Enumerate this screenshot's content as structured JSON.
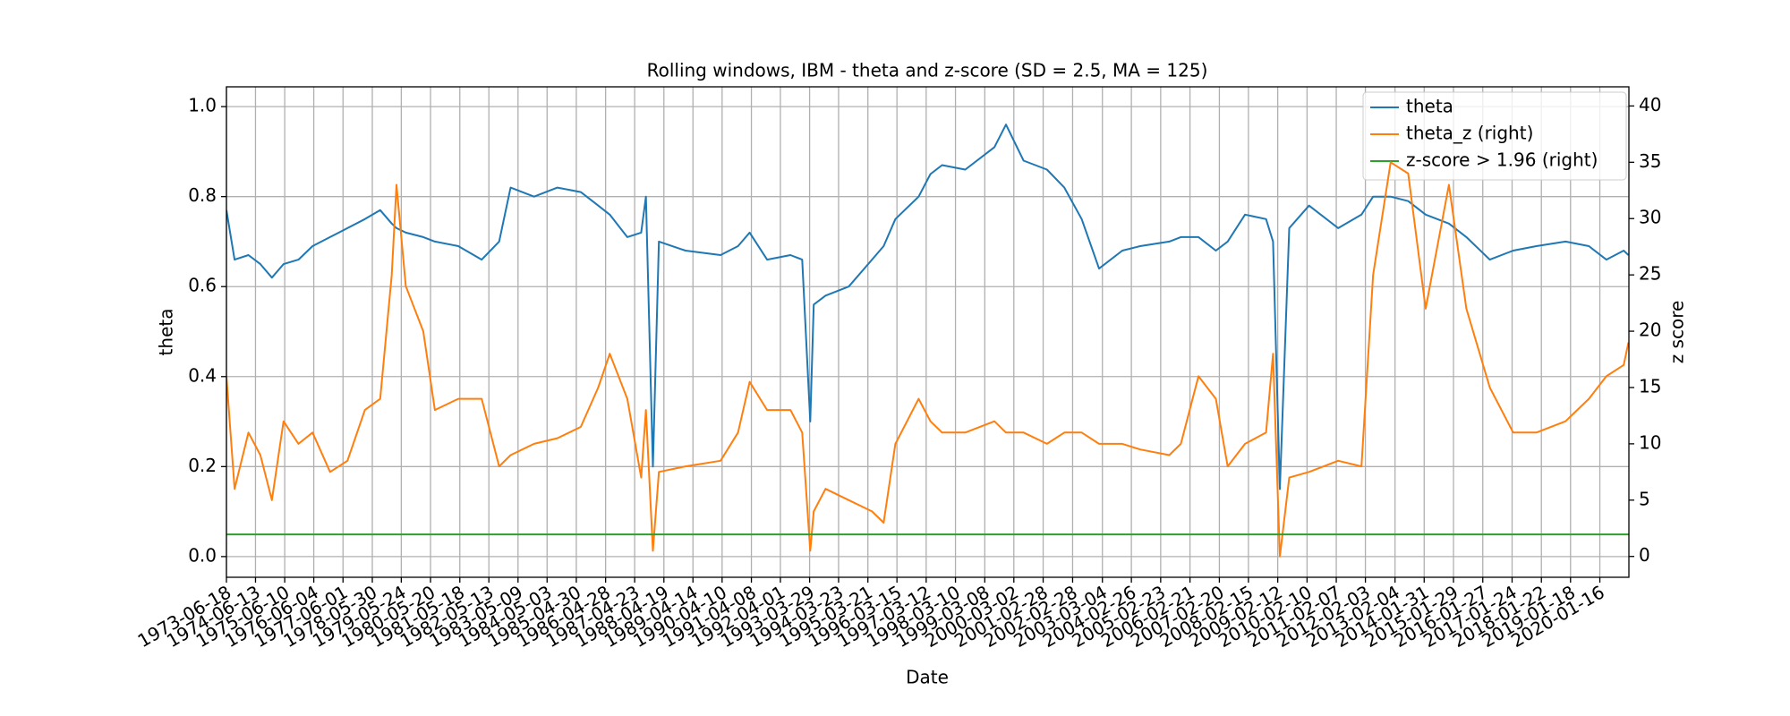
{
  "chart_data": {
    "type": "line",
    "title": "Rolling windows, IBM - theta and z-score (SD = 2.5, MA = 125)",
    "xlabel": "Date",
    "ylabel": "theta",
    "y2label": "z score",
    "legend": "upper right",
    "grid": true,
    "xlim": [
      "1973-06-18",
      "2021-01-10"
    ],
    "ylim": [
      -0.046,
      1.044
    ],
    "y2lim": [
      -1.85,
      41.7
    ],
    "yticks": [
      {
        "value": 0,
        "label": "0.0"
      },
      0.2,
      0.4,
      0.6,
      0.8,
      {
        "value": 1,
        "label": "1.0"
      }
    ],
    "y2ticks": [
      0,
      5,
      10,
      15,
      20,
      25,
      30,
      35,
      40
    ],
    "xticks": [
      "1973-06-18",
      "1974-06-13",
      "1975-06-10",
      "1976-06-04",
      "1977-06-01",
      "1978-05-30",
      "1979-05-24",
      "1980-05-20",
      "1981-05-18",
      "1982-05-13",
      "1983-05-09",
      "1984-05-03",
      "1985-04-30",
      "1986-04-28",
      "1987-04-23",
      "1988-04-19",
      "1989-04-14",
      "1990-04-10",
      "1991-04-08",
      "1992-04-01",
      "1993-03-29",
      "1994-03-23",
      "1995-03-21",
      "1996-03-15",
      "1997-03-12",
      "1998-03-10",
      "1999-03-08",
      "2000-03-02",
      "2001-02-28",
      "2002-02-28",
      "2003-03-04",
      "2004-02-26",
      "2005-02-23",
      "2006-02-21",
      "2007-02-20",
      "2008-02-15",
      "2009-02-12",
      "2010-02-10",
      "2011-02-07",
      "2012-02-03",
      "2013-02-04",
      "2014-01-31",
      "2015-01-29",
      "2016-01-27",
      "2017-01-24",
      "2018-01-22",
      "2019-01-18",
      "2020-01-16"
    ],
    "x": [
      "1973-06-18",
      "1973-09-27",
      "1974-03-18",
      "1974-08-12",
      "1975-01-02",
      "1975-05-26",
      "1975-11-28",
      "1976-05-19",
      "1976-12-23",
      "1977-07-26",
      "1978-02-27",
      "1978-09-05",
      "1979-01-26",
      "1979-03-26",
      "1979-07-19",
      "1980-02-20",
      "1980-07-13",
      "1981-04-30",
      "1982-02-13",
      "1982-09-17",
      "1983-02-06",
      "1983-11-23",
      "1984-09-08",
      "1985-06-24",
      "1986-01-26",
      "1986-06-18",
      "1987-01-22",
      "1987-07-13",
      "1987-09-09",
      "1987-12-05",
      "1988-02-17",
      "1989-01-11",
      "1990-03-22",
      "1990-10-24",
      "1991-03-17",
      "1991-10-19",
      "1992-08-04",
      "1992-12-27",
      "1993-04-06",
      "1993-05-19",
      "1993-10-12",
      "1994-07-27",
      "1995-05-11",
      "1995-10-02",
      "1996-02-24",
      "1996-12-09",
      "1997-05-04",
      "1997-09-25",
      "1998-07-09",
      "1999-07-06",
      "1999-11-26",
      "2000-07-01",
      "2001-04-16",
      "2001-11-17",
      "2002-06-21",
      "2003-01-22",
      "2003-11-06",
      "2004-06-13",
      "2005-06-10",
      "2005-10-31",
      "2006-06-06",
      "2007-01-08",
      "2007-06-03",
      "2008-01-04",
      "2008-09-20",
      "2008-12-16",
      "2009-03-10",
      "2009-07-05",
      "2010-03-07",
      "2011-03-03",
      "2011-12-16",
      "2012-05-08",
      "2012-12-12",
      "2013-07-17",
      "2014-02-18",
      "2014-12-03",
      "2015-07-08",
      "2016-04-23",
      "2017-02-06",
      "2017-11-21",
      "2018-11-17",
      "2019-09-02",
      "2020-04-06",
      "2020-11-07",
      "2021-01-05"
    ],
    "series": [
      {
        "name": "theta",
        "color": "#1f77b4",
        "values": [
          0.77,
          0.66,
          0.67,
          0.65,
          0.62,
          0.65,
          0.66,
          0.69,
          0.71,
          0.73,
          0.75,
          0.77,
          0.74,
          0.73,
          0.72,
          0.71,
          0.7,
          0.69,
          0.66,
          0.7,
          0.82,
          0.8,
          0.82,
          0.81,
          0.78,
          0.76,
          0.71,
          0.72,
          0.8,
          0.2,
          0.7,
          0.68,
          0.67,
          0.69,
          0.72,
          0.66,
          0.67,
          0.66,
          0.3,
          0.56,
          0.58,
          0.6,
          0.66,
          0.69,
          0.75,
          0.8,
          0.85,
          0.87,
          0.86,
          0.91,
          0.96,
          0.88,
          0.86,
          0.82,
          0.75,
          0.64,
          0.68,
          0.69,
          0.7,
          0.71,
          0.71,
          0.68,
          0.7,
          0.76,
          0.75,
          0.7,
          0.15,
          0.73,
          0.78,
          0.73,
          0.76,
          0.8,
          0.8,
          0.79,
          0.76,
          0.74,
          0.71,
          0.66,
          0.68,
          0.69,
          0.7,
          0.69,
          0.66,
          0.68,
          0.67
        ]
      },
      {
        "name": "theta_z (right)",
        "color": "#ff7f0e",
        "axis": "y2",
        "values": [
          16,
          6,
          11,
          9,
          5,
          12,
          10,
          11,
          7.5,
          8.5,
          13,
          14,
          25,
          33,
          24,
          20,
          13,
          14,
          14,
          8,
          9,
          10,
          10.5,
          11.5,
          15,
          18,
          14,
          7,
          13,
          0.5,
          7.5,
          8,
          8.5,
          11,
          15.5,
          13,
          13,
          11,
          0.5,
          4,
          6,
          5,
          4,
          3,
          10,
          14,
          12,
          11,
          11,
          12,
          11,
          11,
          10,
          11,
          11,
          10,
          10,
          9.5,
          9,
          10,
          16,
          14,
          8,
          10,
          11,
          18,
          0,
          7,
          7.5,
          8.5,
          8,
          25,
          35,
          34,
          22,
          33,
          22,
          15,
          11,
          11,
          12,
          14,
          16,
          17,
          19
        ]
      },
      {
        "name": "z-score > 1.96 (right)",
        "color": "#2ca02c",
        "axis": "y2",
        "x": [
          "1973-06-18",
          "2021-01-10"
        ],
        "values": [
          1.96,
          1.96
        ]
      }
    ]
  }
}
